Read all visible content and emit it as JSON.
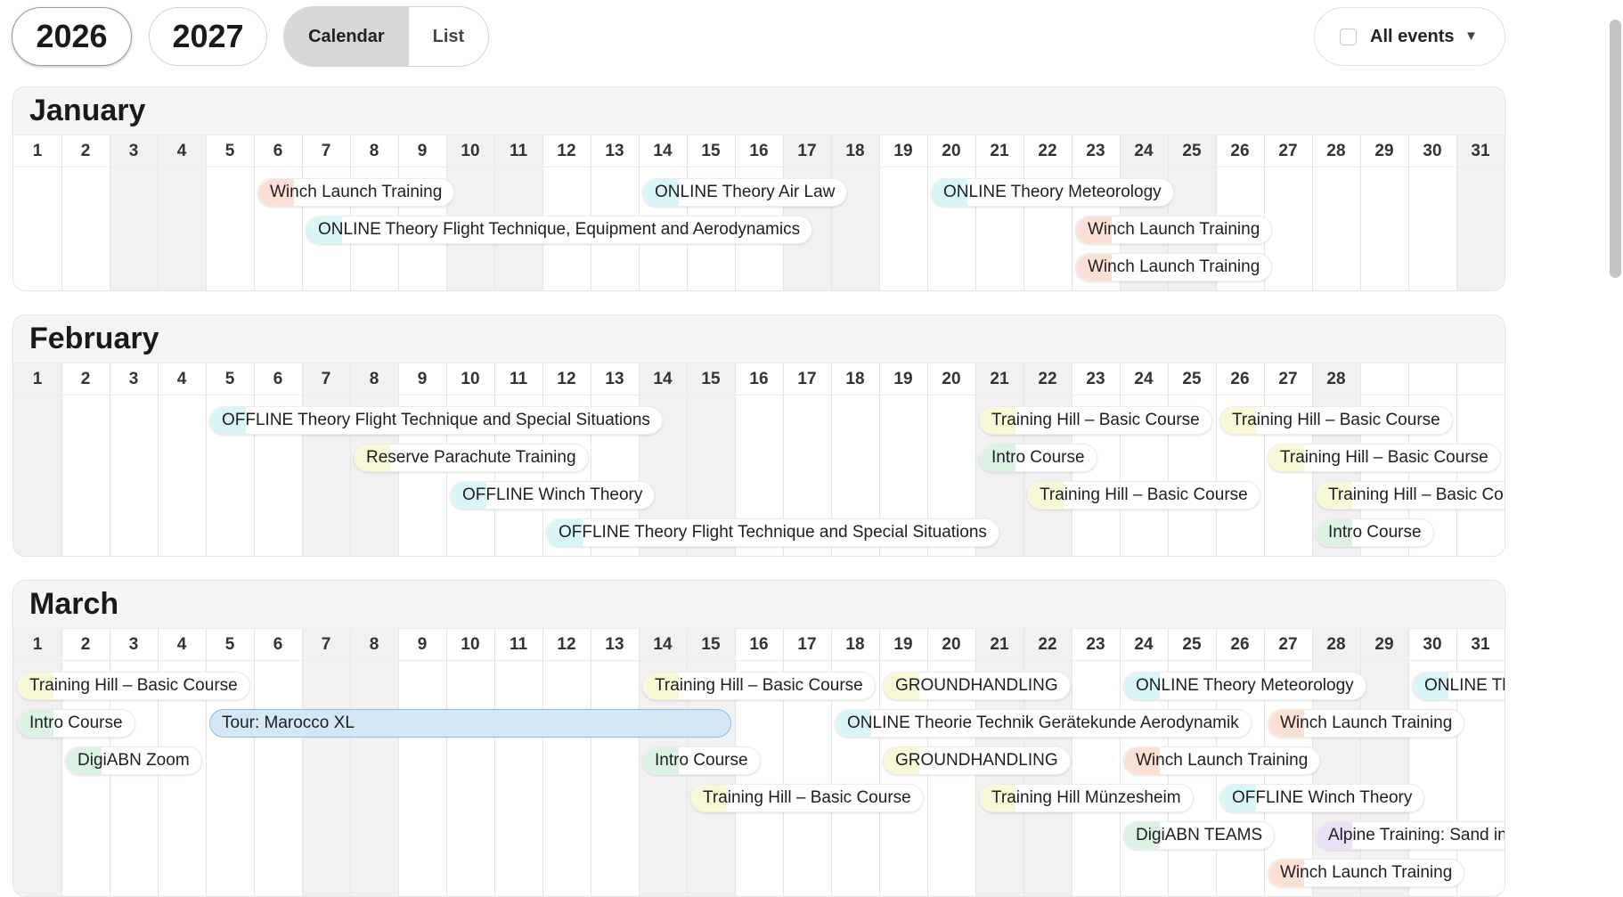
{
  "toolbar": {
    "years": [
      "2026",
      "2027"
    ],
    "active_year": "2026",
    "views": [
      "Calendar",
      "List"
    ],
    "active_view": "Calendar",
    "filter_label": "All events",
    "filter_caret": "▼"
  },
  "colors": {
    "winch": "#f9c6b5",
    "online": "#b8ecf3",
    "offline": "#b8ecf3",
    "training": "#eef2b4",
    "intro": "#bfe9cc",
    "reserve": "#eef2b4",
    "ground": "#eef2b4",
    "digi": "#bfe9cc",
    "alpine": "#d9c9f2",
    "tour": "#d4e7f5"
  },
  "months": [
    {
      "name": "January",
      "days": 31,
      "weekends": [
        3,
        4,
        10,
        11,
        17,
        18,
        24,
        25,
        31
      ],
      "rows": 3,
      "events": [
        {
          "label": "Winch Launch Training",
          "day": 6,
          "row": 0,
          "kind": "winch"
        },
        {
          "label": "ONLINE Theory Air Law",
          "day": 14,
          "row": 0,
          "kind": "online"
        },
        {
          "label": "ONLINE Theory Meteorology",
          "day": 20,
          "row": 0,
          "kind": "online"
        },
        {
          "label": "ONLINE Theory Flight Technique, Equipment and Aerodynamics",
          "day": 7,
          "row": 1,
          "kind": "online"
        },
        {
          "label": "Winch Launch Training",
          "day": 23,
          "row": 1,
          "kind": "winch"
        },
        {
          "label": "Winch Launch Training",
          "day": 23,
          "row": 2,
          "kind": "winch"
        }
      ]
    },
    {
      "name": "February",
      "days": 28,
      "weekends": [
        1,
        7,
        8,
        14,
        15,
        21,
        22,
        28
      ],
      "rows": 4,
      "events": [
        {
          "label": "OFFLINE Theory Flight Technique and Special Situations",
          "day": 5,
          "row": 0,
          "kind": "offline"
        },
        {
          "label": "Training Hill – Basic Course",
          "day": 21,
          "row": 0,
          "kind": "training"
        },
        {
          "label": "Training Hill – Basic Course",
          "day": 26,
          "row": 0,
          "kind": "training"
        },
        {
          "label": "Reserve Parachute Training",
          "day": 8,
          "row": 1,
          "kind": "reserve"
        },
        {
          "label": "Intro Course",
          "day": 21,
          "row": 1,
          "kind": "intro"
        },
        {
          "label": "Training Hill – Basic Course",
          "day": 27,
          "row": 1,
          "kind": "training"
        },
        {
          "label": "OFFLINE Winch Theory",
          "day": 10,
          "row": 2,
          "kind": "offline"
        },
        {
          "label": "Training Hill – Basic Course",
          "day": 22,
          "row": 2,
          "kind": "training"
        },
        {
          "label": "Training Hill – Basic Course",
          "day": 28,
          "row": 2,
          "kind": "training"
        },
        {
          "label": "OFFLINE Theory Flight Technique and Special Situations",
          "day": 12,
          "row": 3,
          "kind": "offline"
        },
        {
          "label": "Intro Course",
          "day": 28,
          "row": 3,
          "kind": "intro"
        }
      ]
    },
    {
      "name": "March",
      "days": 31,
      "weekends": [
        1,
        7,
        8,
        14,
        15,
        21,
        22,
        28,
        29
      ],
      "rows": 6,
      "events": [
        {
          "label": "Training Hill – Basic Course",
          "day": 1,
          "row": 0,
          "kind": "training"
        },
        {
          "label": "Training Hill – Basic Course",
          "day": 14,
          "row": 0,
          "kind": "training"
        },
        {
          "label": "GROUNDHANDLING",
          "day": 19,
          "row": 0,
          "kind": "ground"
        },
        {
          "label": "ONLINE Theory Meteorology",
          "day": 24,
          "row": 0,
          "kind": "online"
        },
        {
          "label": "ONLINE Theory Air Law",
          "day": 30,
          "row": 0,
          "kind": "online"
        },
        {
          "label": "Intro Course",
          "day": 1,
          "row": 1,
          "kind": "intro"
        },
        {
          "label": "Tour: Marocco XL",
          "day": 5,
          "row": 1,
          "kind": "tour",
          "end_day": 15
        },
        {
          "label": "ONLINE Theorie Technik Gerätekunde Aerodynamik",
          "day": 18,
          "row": 1,
          "kind": "online"
        },
        {
          "label": "Winch Launch Training",
          "day": 27,
          "row": 1,
          "kind": "winch"
        },
        {
          "label": "DigiABN Zoom",
          "day": 2,
          "row": 2,
          "kind": "digi"
        },
        {
          "label": "Intro Course",
          "day": 14,
          "row": 2,
          "kind": "intro"
        },
        {
          "label": "GROUNDHANDLING",
          "day": 19,
          "row": 2,
          "kind": "ground"
        },
        {
          "label": "Winch Launch Training",
          "day": 24,
          "row": 2,
          "kind": "winch"
        },
        {
          "label": "Training Hill – Basic Course",
          "day": 15,
          "row": 3,
          "kind": "training"
        },
        {
          "label": "Training Hill Münzesheim",
          "day": 21,
          "row": 3,
          "kind": "training"
        },
        {
          "label": "OFFLINE Winch Theory",
          "day": 26,
          "row": 3,
          "kind": "offline"
        },
        {
          "label": "DigiABN TEAMS",
          "day": 24,
          "row": 4,
          "kind": "digi"
        },
        {
          "label": "Alpine Training: Sand in Taufers",
          "day": 28,
          "row": 4,
          "kind": "alpine"
        },
        {
          "label": "Winch Launch Training",
          "day": 27,
          "row": 5,
          "kind": "winch"
        }
      ]
    }
  ]
}
